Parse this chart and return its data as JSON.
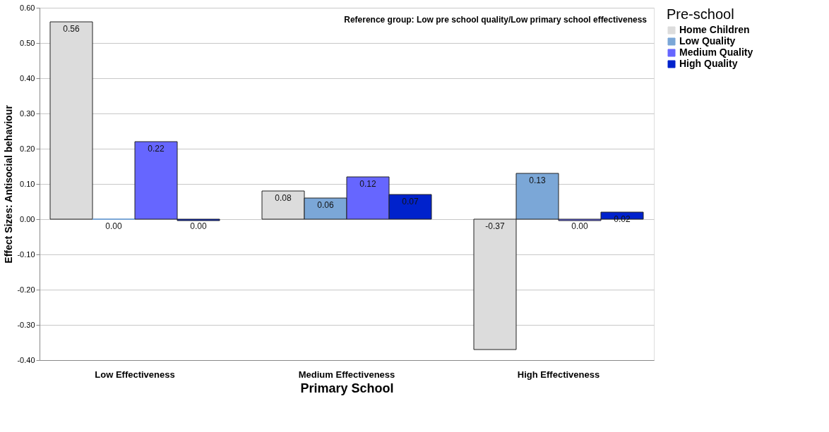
{
  "chart_data": {
    "type": "bar",
    "xlabel": "Primary School",
    "ylabel": "Effect Sizes: Antisocial behaviour",
    "legend_title": "Pre-school",
    "categories": [
      "Low Effectiveness",
      "Medium Effectiveness",
      "High Effectiveness"
    ],
    "series": [
      {
        "name": "Home Children",
        "color": "#dcdcdc",
        "values": [
          0.56,
          0.08,
          -0.37
        ],
        "value_labels": [
          "0.56",
          "0.08",
          "-0.37"
        ]
      },
      {
        "name": "Low Quality",
        "color": "#7ba7d7",
        "values": [
          0.0,
          0.06,
          0.13
        ],
        "value_labels": [
          "0.00",
          "0.06",
          "0.13"
        ]
      },
      {
        "name": "Medium Quality",
        "color": "#6666ff",
        "values": [
          0.22,
          0.12,
          -0.004
        ],
        "value_labels": [
          "0.22",
          "0.12",
          "0.00"
        ]
      },
      {
        "name": "High Quality",
        "color": "#0022cc",
        "values": [
          -0.004,
          0.07,
          0.02
        ],
        "value_labels": [
          "0.00",
          "0.07",
          "0.02"
        ]
      }
    ],
    "ylim": [
      -0.4,
      0.6
    ],
    "yticks": [
      {
        "value": -0.4,
        "label": "-0.40"
      },
      {
        "value": -0.3,
        "label": "-0.30"
      },
      {
        "value": -0.2,
        "label": "-0.20"
      },
      {
        "value": -0.1,
        "label": "-0.10"
      },
      {
        "value": 0,
        "label": "0.00"
      },
      {
        "value": 0.1,
        "label": "0.10"
      },
      {
        "value": 0.2,
        "label": "0.20"
      },
      {
        "value": 0.3,
        "label": "0.30"
      },
      {
        "value": 0.4,
        "label": "0.40"
      },
      {
        "value": 0.5,
        "label": "0.50"
      },
      {
        "value": 0.6,
        "label": "0.60"
      }
    ],
    "grid": "y",
    "legend": "top right",
    "annotations": [
      "Reference group: Low pre school quality/Low primary school effectiveness"
    ]
  }
}
